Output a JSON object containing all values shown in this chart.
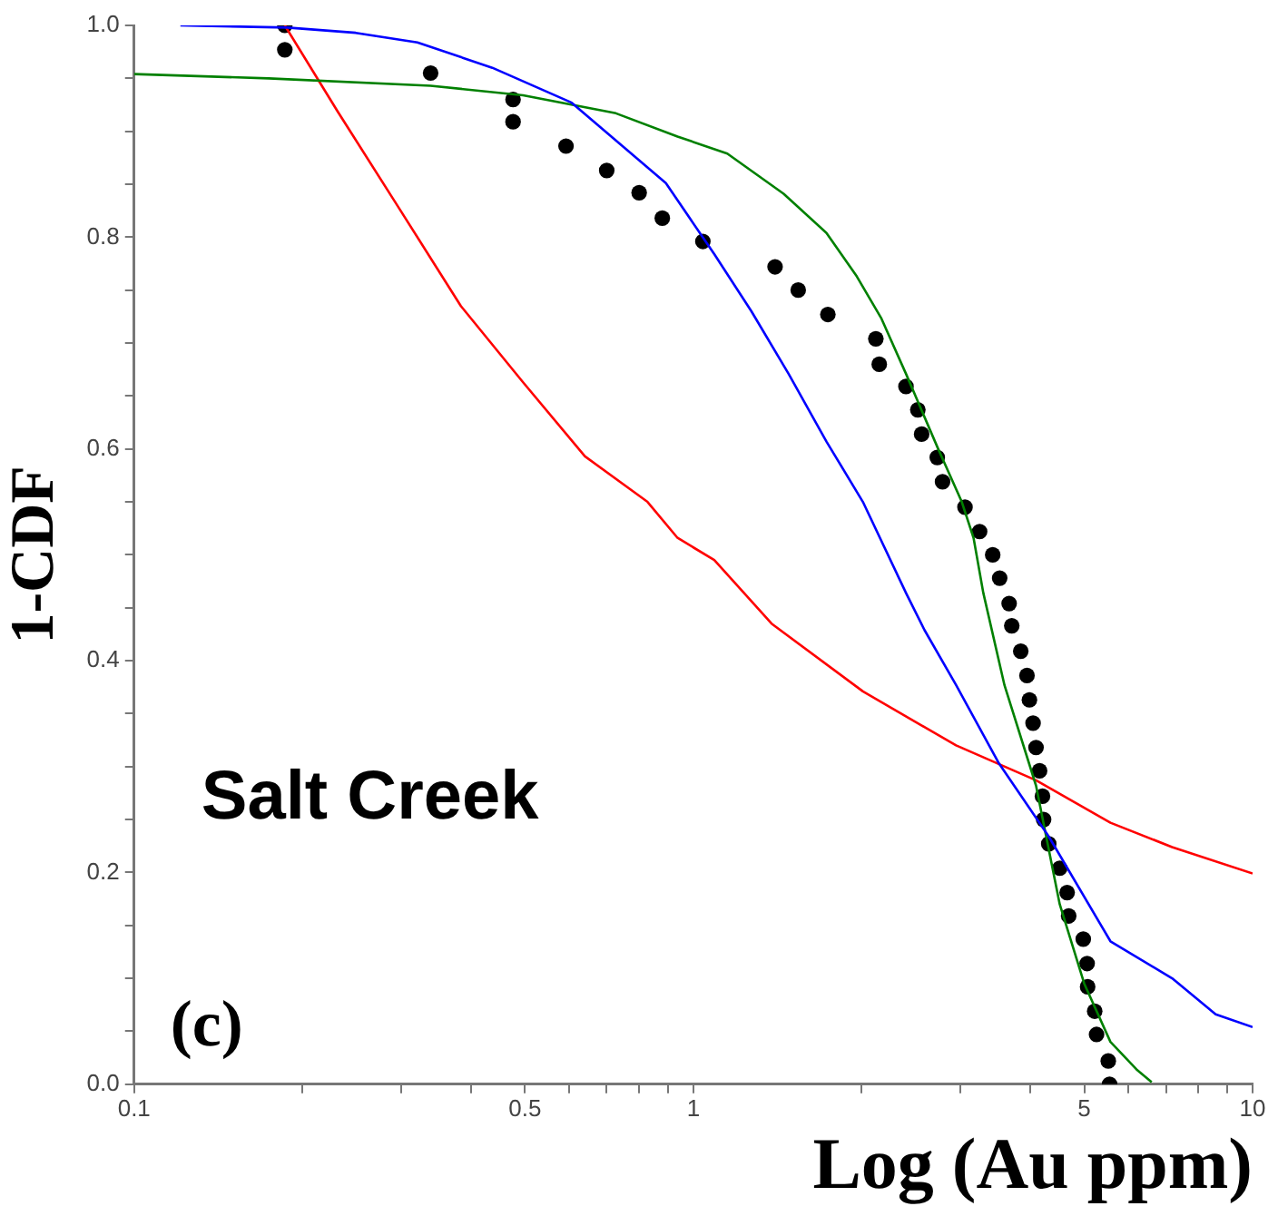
{
  "chart_data": {
    "type": "line",
    "xlabel": "Log (Au ppm)",
    "ylabel": "1-CDF",
    "log": "x",
    "grid": false,
    "legend": false,
    "marker": "none",
    "line_style": "solid",
    "xlim": [
      0.1,
      10
    ],
    "xticks": [
      {
        "value": 0.1,
        "label": "0.1"
      },
      {
        "value": 0.2,
        "label": null
      },
      {
        "value": 0.3,
        "label": null
      },
      {
        "value": 0.4,
        "label": null
      },
      {
        "value": 0.5,
        "label": "0.5"
      },
      {
        "value": 0.6,
        "label": null
      },
      {
        "value": 0.7,
        "label": null
      },
      {
        "value": 0.8,
        "label": null
      },
      {
        "value": 0.9,
        "label": null
      },
      {
        "value": 1,
        "label": "1"
      },
      {
        "value": 2,
        "label": null
      },
      {
        "value": 3,
        "label": null
      },
      {
        "value": 4,
        "label": null
      },
      {
        "value": 5,
        "label": "5"
      },
      {
        "value": 6,
        "label": null
      },
      {
        "value": 7,
        "label": null
      },
      {
        "value": 8,
        "label": null
      },
      {
        "value": 9,
        "label": null
      },
      {
        "value": 10,
        "label": "10"
      }
    ],
    "ylim": [
      0,
      1
    ],
    "yticks": [
      {
        "value": 0,
        "label": "0.0"
      },
      {
        "value": 0.05,
        "label": null
      },
      {
        "value": 0.1,
        "label": null
      },
      {
        "value": 0.15,
        "label": null
      },
      {
        "value": 0.2,
        "label": "0.2"
      },
      {
        "value": 0.25,
        "label": null
      },
      {
        "value": 0.3,
        "label": null
      },
      {
        "value": 0.35,
        "label": null
      },
      {
        "value": 0.4,
        "label": "0.4"
      },
      {
        "value": 0.45,
        "label": null
      },
      {
        "value": 0.5,
        "label": null
      },
      {
        "value": 0.55,
        "label": null
      },
      {
        "value": 0.6,
        "label": "0.6"
      },
      {
        "value": 0.65,
        "label": null
      },
      {
        "value": 0.7,
        "label": null
      },
      {
        "value": 0.75,
        "label": null
      },
      {
        "value": 0.8,
        "label": "0.8"
      },
      {
        "value": 0.85,
        "label": null
      },
      {
        "value": 0.9,
        "label": null
      },
      {
        "value": 0.95,
        "label": null
      },
      {
        "value": 1,
        "label": "1.0"
      }
    ],
    "annotations": [
      "Salt Creek",
      "(c)"
    ],
    "series": [
      {
        "type": "line",
        "color": "#0000ff",
        "x": [
          0.121,
          0.188,
          0.249,
          0.321,
          0.437,
          0.606,
          0.893,
          1.09,
          1.27,
          1.48,
          1.73,
          2.01,
          2.4,
          2.59,
          2.95,
          3.52,
          4.32,
          5.57,
          7.18,
          8.59,
          10
        ],
        "values": [
          1.0,
          0.998,
          0.993,
          0.984,
          0.96,
          0.927,
          0.851,
          0.784,
          0.73,
          0.671,
          0.607,
          0.55,
          0.464,
          0.429,
          0.377,
          0.303,
          0.234,
          0.135,
          0.1,
          0.066,
          0.054
        ]
      },
      {
        "type": "line",
        "color": "#008000",
        "x": [
          0.1,
          0.174,
          0.339,
          0.496,
          0.727,
          0.937,
          1.15,
          1.45,
          1.73,
          1.96,
          2.17,
          2.4,
          2.73,
          3.02,
          3.17,
          3.3,
          3.6,
          4.1,
          4.52,
          5.0,
          5.57,
          6.2,
          6.6
        ],
        "values": [
          0.954,
          0.95,
          0.943,
          0.934,
          0.917,
          0.895,
          0.879,
          0.841,
          0.804,
          0.763,
          0.723,
          0.671,
          0.602,
          0.55,
          0.516,
          0.464,
          0.377,
          0.282,
          0.17,
          0.095,
          0.04,
          0.014,
          0.002
        ]
      },
      {
        "type": "line",
        "color": "#ff0000",
        "x": [
          0.186,
          0.231,
          0.298,
          0.384,
          0.496,
          0.64,
          0.828,
          0.937,
          1.09,
          1.38,
          2.01,
          2.95,
          4.1,
          5.57,
          7.18,
          10
        ],
        "values": [
          1.0,
          0.919,
          0.827,
          0.735,
          0.663,
          0.593,
          0.55,
          0.516,
          0.495,
          0.435,
          0.371,
          0.32,
          0.287,
          0.247,
          0.224,
          0.199
        ]
      },
      {
        "type": "scatter",
        "color": "#000000",
        "marker": "circle",
        "x": [
          0.186,
          0.186,
          0.339,
          0.476,
          0.476,
          0.592,
          0.7,
          0.8,
          0.88,
          1.04,
          1.4,
          1.54,
          1.74,
          2.12,
          2.15,
          2.4,
          2.52,
          2.56,
          2.73,
          2.79,
          3.06,
          3.25,
          3.43,
          3.53,
          3.67,
          3.71,
          3.85,
          3.95,
          3.99,
          4.05,
          4.1,
          4.16,
          4.21,
          4.23,
          4.32,
          4.52,
          4.66,
          4.69,
          4.98,
          5.06,
          5.07,
          5.22,
          5.26,
          5.52,
          5.55
        ],
        "values": [
          1.0,
          0.977,
          0.955,
          0.93,
          0.909,
          0.886,
          0.863,
          0.842,
          0.818,
          0.796,
          0.772,
          0.75,
          0.727,
          0.704,
          0.68,
          0.659,
          0.637,
          0.614,
          0.592,
          0.569,
          0.545,
          0.522,
          0.5,
          0.478,
          0.454,
          0.433,
          0.409,
          0.386,
          0.363,
          0.341,
          0.318,
          0.296,
          0.272,
          0.25,
          0.227,
          0.204,
          0.181,
          0.159,
          0.137,
          0.114,
          0.092,
          0.069,
          0.047,
          0.022,
          0.0
        ]
      }
    ]
  }
}
